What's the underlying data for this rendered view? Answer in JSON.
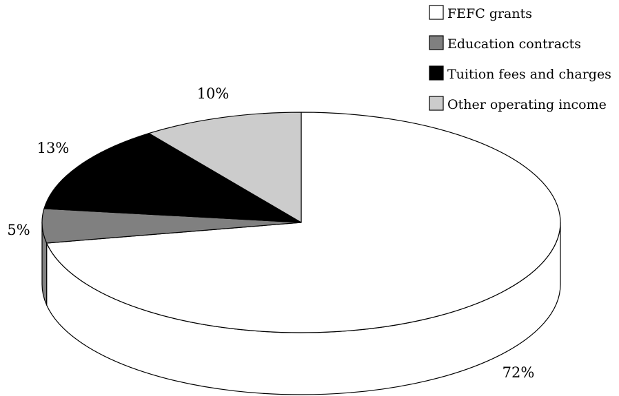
{
  "chart_data": {
    "type": "pie",
    "style": "3d",
    "title": "",
    "legend_position": "top-right",
    "slices": [
      {
        "label": "FEFC grants",
        "value": 72,
        "value_label": "72%",
        "color": "#ffffff"
      },
      {
        "label": "Education contracts",
        "value": 5,
        "value_label": "5%",
        "color": "#808080"
      },
      {
        "label": "Tuition fees and charges",
        "value": 13,
        "value_label": "13%",
        "color": "#000000"
      },
      {
        "label": "Other operating income",
        "value": 10,
        "value_label": "10%",
        "color": "#cccccc"
      }
    ]
  }
}
